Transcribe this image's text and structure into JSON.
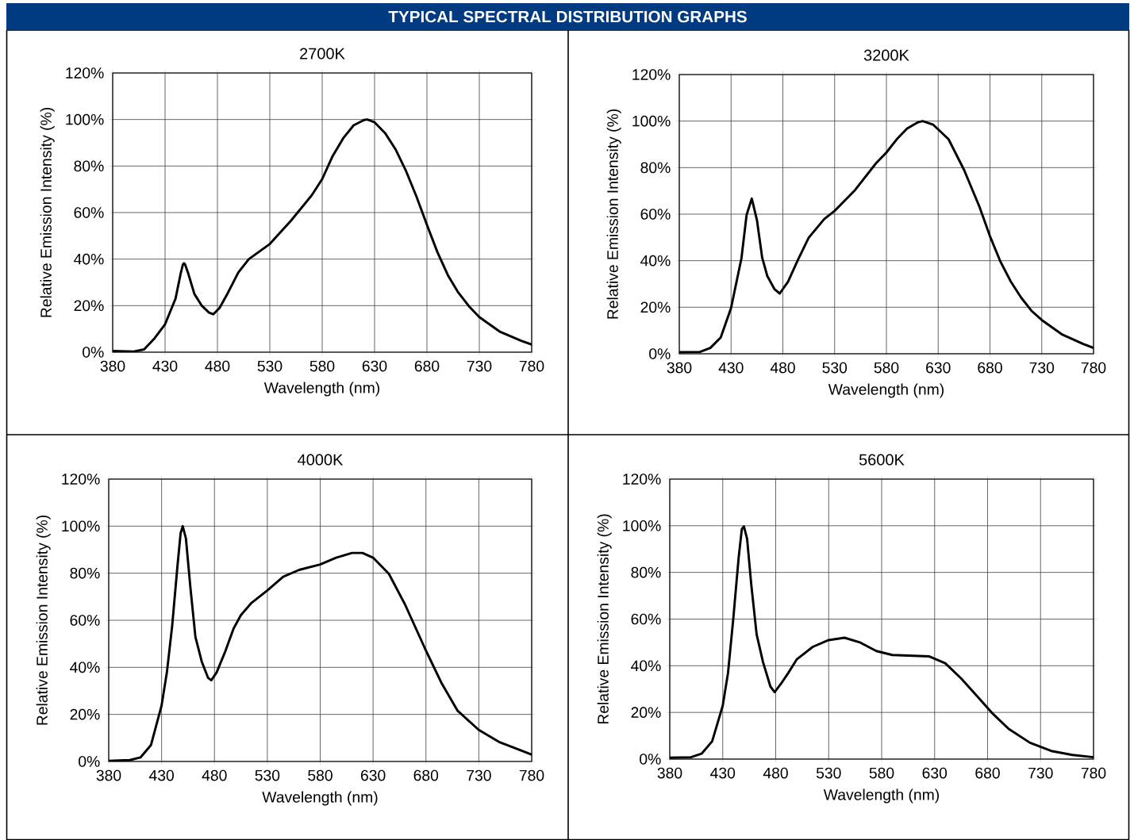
{
  "chart_data": [
    {
      "type": "other",
      "title": "TYPICAL SPECTRAL DISTRIBUTION GRAPHS"
    },
    {
      "type": "line",
      "title": "2700K",
      "xlabel": "Wavelength (nm)",
      "ylabel": "Relative Emission Intensity (%)",
      "color": "#000000",
      "marker": "none",
      "line_style": "solid",
      "grid": true,
      "xlim": [
        380,
        780
      ],
      "ylim": [
        0,
        120
      ],
      "xticks": [
        380,
        430,
        480,
        530,
        580,
        630,
        680,
        730,
        780
      ],
      "yticks": [
        {
          "value": 0,
          "label": "0%"
        },
        {
          "value": 20,
          "label": "20%"
        },
        {
          "value": 40,
          "label": "40%"
        },
        {
          "value": 60,
          "label": "60%"
        },
        {
          "value": 80,
          "label": "80%"
        },
        {
          "value": 100,
          "label": "100%"
        },
        {
          "value": 120,
          "label": "120%"
        }
      ],
      "x": [
        380,
        400,
        410,
        420,
        430,
        440,
        445,
        447,
        448,
        449,
        452,
        458,
        465,
        472,
        476,
        482,
        490,
        500,
        510,
        530,
        550,
        570,
        580,
        590,
        600,
        610,
        620,
        623,
        630,
        640,
        650,
        660,
        670,
        680,
        690,
        700,
        710,
        720,
        730,
        750,
        770,
        780
      ],
      "values": [
        0.5,
        0.3,
        1.2,
        6,
        12,
        23,
        34,
        37.6,
        38.2,
        37.8,
        34,
        25,
        20,
        17,
        16.3,
        19,
        25.5,
        34.3,
        40,
        46.5,
        56.4,
        67.4,
        74.4,
        84.3,
        91.9,
        97.5,
        99.8,
        100,
        98.8,
        94.2,
        87.2,
        77.9,
        66.9,
        54.7,
        43,
        33.1,
        25.6,
        19.8,
        15.1,
        8.7,
        4.9,
        3.3
      ]
    },
    {
      "type": "line",
      "title": "3200K",
      "xlabel": "Wavelength (nm)",
      "ylabel": "Relative Emission Intensity (%)",
      "color": "#000000",
      "marker": "none",
      "line_style": "solid",
      "grid": true,
      "xlim": [
        380,
        780
      ],
      "ylim": [
        0,
        120
      ],
      "xticks": [
        380,
        430,
        480,
        530,
        580,
        630,
        680,
        730,
        780
      ],
      "yticks": [
        {
          "value": 0,
          "label": "0%"
        },
        {
          "value": 20,
          "label": "20%"
        },
        {
          "value": 40,
          "label": "40%"
        },
        {
          "value": 60,
          "label": "60%"
        },
        {
          "value": 80,
          "label": "80%"
        },
        {
          "value": 100,
          "label": "100%"
        },
        {
          "value": 120,
          "label": "120%"
        }
      ],
      "x": [
        380,
        400,
        410,
        420,
        430,
        440,
        445,
        450,
        455,
        460,
        465,
        472,
        477,
        485,
        495,
        505,
        520,
        530,
        550,
        570,
        580,
        590,
        600,
        610,
        615,
        625,
        640,
        655,
        670,
        680,
        690,
        700,
        710,
        720,
        730,
        750,
        770,
        780
      ],
      "values": [
        0.7,
        0.8,
        2.5,
        7,
        19.7,
        41,
        59.7,
        66.7,
        57.4,
        41.4,
        33.4,
        27.7,
        25.9,
        31,
        40.8,
        49.9,
        57.9,
        61.4,
        70.5,
        81.9,
        86.5,
        92.2,
        96.8,
        99.4,
        100,
        98.5,
        92.2,
        79,
        63,
        50.5,
        39.7,
        31.1,
        24.2,
        18.5,
        14.5,
        8.2,
        4.2,
        2.5
      ]
    },
    {
      "type": "line",
      "title": "4000K",
      "xlabel": "Wavelength (nm)",
      "ylabel": "Relative Emission Intensity (%)",
      "color": "#000000",
      "marker": "none",
      "line_style": "solid",
      "grid": true,
      "xlim": [
        380,
        780
      ],
      "ylim": [
        0,
        120
      ],
      "xticks": [
        380,
        430,
        480,
        530,
        580,
        630,
        680,
        730,
        780
      ],
      "yticks": [
        {
          "value": 0,
          "label": "0%"
        },
        {
          "value": 20,
          "label": "20%"
        },
        {
          "value": 40,
          "label": "40%"
        },
        {
          "value": 60,
          "label": "60%"
        },
        {
          "value": 80,
          "label": "80%"
        },
        {
          "value": 100,
          "label": "100%"
        },
        {
          "value": 120,
          "label": "120%"
        }
      ],
      "x": [
        380,
        400,
        410,
        420,
        430,
        435,
        440,
        445,
        448,
        450,
        453,
        457,
        462,
        468,
        474,
        477,
        482,
        490,
        498,
        505,
        515,
        530,
        545,
        560,
        580,
        595,
        610,
        620,
        630,
        645,
        660,
        680,
        695,
        710,
        730,
        750,
        770,
        780
      ],
      "values": [
        0.3,
        0.6,
        1.7,
        7,
        23.8,
        37.8,
        57.6,
        83,
        97,
        100,
        94.8,
        75,
        52.9,
        42.4,
        35.5,
        34.5,
        37.8,
        46.5,
        56.4,
        62.2,
        67.4,
        72.7,
        78.5,
        81.4,
        83.7,
        86.6,
        88.6,
        88.6,
        86.6,
        79.7,
        66.9,
        47.1,
        33.1,
        21.5,
        13.4,
        8.1,
        4.7,
        2.9
      ]
    },
    {
      "type": "line",
      "title": "5600K",
      "xlabel": "Wavelength (nm)",
      "ylabel": "Relative Emission Intensity (%)",
      "color": "#000000",
      "marker": "none",
      "line_style": "solid",
      "grid": true,
      "xlim": [
        380,
        780
      ],
      "ylim": [
        0,
        120
      ],
      "xticks": [
        380,
        430,
        480,
        530,
        580,
        630,
        680,
        730,
        780
      ],
      "yticks": [
        {
          "value": 0,
          "label": "0%"
        },
        {
          "value": 20,
          "label": "20%"
        },
        {
          "value": 40,
          "label": "40%"
        },
        {
          "value": 60,
          "label": "60%"
        },
        {
          "value": 80,
          "label": "80%"
        },
        {
          "value": 100,
          "label": "100%"
        },
        {
          "value": 120,
          "label": "120%"
        }
      ],
      "x": [
        380,
        400,
        410,
        420,
        430,
        435,
        440,
        445,
        448,
        450,
        453,
        457,
        462,
        468,
        475,
        479,
        485,
        492,
        500,
        515,
        530,
        545,
        560,
        575,
        590,
        610,
        625,
        640,
        655,
        670,
        685,
        700,
        720,
        740,
        760,
        780
      ],
      "values": [
        0.6,
        0.8,
        2.3,
        7.6,
        22.9,
        37,
        60.4,
        86.2,
        98.5,
        99.7,
        94.4,
        74.5,
        53.4,
        41.6,
        31.1,
        28.7,
        32.3,
        37,
        42.8,
        48.1,
        51,
        52,
        49.9,
        46.3,
        44.6,
        44.3,
        44,
        41.1,
        34.6,
        27,
        19.4,
        12.9,
        7,
        3.5,
        1.8,
        0.8
      ]
    }
  ]
}
